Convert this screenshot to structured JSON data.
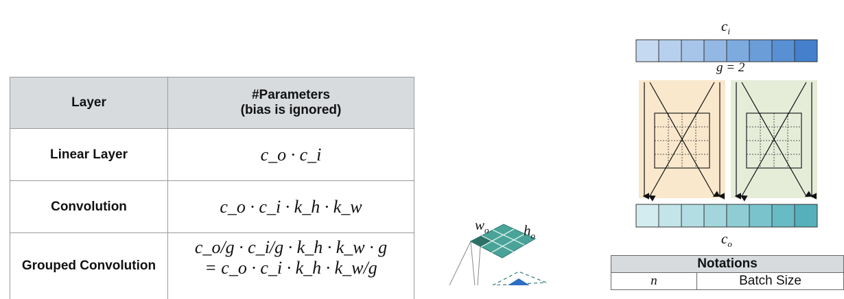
{
  "param_table": {
    "headers": {
      "layer": "Layer",
      "params_line1": "#Parameters",
      "params_line2": "(bias is ignored)"
    },
    "rows": [
      {
        "layer": "Linear Layer",
        "formula": "c_o · c_i"
      },
      {
        "layer": "Convolution",
        "formula": "c_o · c_i · k_h · k_w"
      },
      {
        "layer": "Grouped Convolution",
        "formula_line1": "c_o/g · c_i/g · k_h · k_w · g",
        "formula_line2": "= c_o · c_i · k_h · k_w/g"
      }
    ]
  },
  "conv_sketch": {
    "w_label": "w",
    "w_sub": "o",
    "h_label": "h",
    "h_sub": "o"
  },
  "group_diagram": {
    "top_label": "c",
    "top_sub": "i",
    "groups_label": "g = 2",
    "bottom_label": "c",
    "bottom_sub": "o",
    "input_colors": [
      "#c5daf0",
      "#b7d0ed",
      "#a7c5e9",
      "#94b8e4",
      "#7eabdf",
      "#6b9dd9",
      "#5990d4",
      "#4480cc"
    ],
    "output_colors": [
      "#d3ecef",
      "#c3e5e9",
      "#b2dde3",
      "#a2d6dc",
      "#8fcdd4",
      "#7bc3cc",
      "#68bac4",
      "#55b0bc"
    ],
    "group1_bg": "#f9e8cc",
    "group2_bg": "#e5edd9"
  },
  "notations": {
    "title": "Notations",
    "rows": [
      {
        "symbol": "n",
        "meaning": "Batch Size"
      }
    ]
  }
}
